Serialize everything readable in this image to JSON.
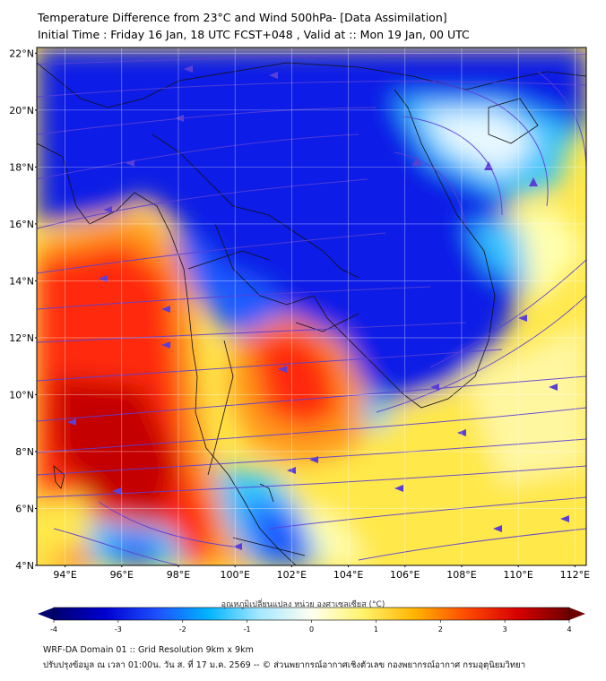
{
  "title": {
    "line1": "Temperature Difference from 23°C and Wind 500hPa- [Data Assimilation]",
    "line2": "Initial Time : Friday 16 Jan, 18 UTC FCST+048 , Valid at ::  Mon 19 Jan, 00 UTC"
  },
  "axes": {
    "lat_labels": [
      "22°N",
      "20°N",
      "18°N",
      "16°N",
      "14°N",
      "12°N",
      "10°N",
      "8°N",
      "6°N",
      "4°N"
    ],
    "lat_values": [
      22,
      20,
      18,
      16,
      14,
      12,
      10,
      8,
      6,
      4
    ],
    "lon_labels": [
      "94°E",
      "96°E",
      "98°E",
      "100°E",
      "102°E",
      "104°E",
      "106°E",
      "108°E",
      "110°E",
      "112°E"
    ],
    "lon_values": [
      94,
      96,
      98,
      100,
      102,
      104,
      106,
      108,
      110,
      112
    ],
    "lat_range": [
      4,
      22.2
    ],
    "lon_range": [
      93,
      112.4
    ]
  },
  "colorbar": {
    "title": "อุณหภูมิเปลี่ยนแปลง หน่วย องศาเซลเซียส (°C)",
    "ticks": [
      "-4",
      "-3",
      "-2",
      "-1",
      "0",
      "1",
      "2",
      "3",
      "4"
    ],
    "tick_values": [
      -4,
      -3,
      -2,
      -1,
      0,
      1,
      2,
      3,
      4
    ],
    "range": [
      -4,
      4
    ],
    "stops": [
      "#00006e",
      "#0000d0",
      "#1e50ff",
      "#00b4ff",
      "#a6e8ff",
      "#fffff0",
      "#fff36a",
      "#ffb400",
      "#ff4a00",
      "#d60000",
      "#6e0000"
    ]
  },
  "field_colors": {
    "cold_deep": "#0a1ee6",
    "cold": "#1e5cff",
    "cool": "#36c4ff",
    "near_zero": "#e8f8ff",
    "warm_light": "#ffffb0",
    "warm": "#ffe84a",
    "hot": "#ff9a1a",
    "very_hot": "#ff2a10",
    "extreme": "#c40000",
    "streamline": "#5a3fd6"
  },
  "footer": {
    "line1": "WRF-DA Domain 01 :: Grid Resolution 9km x 9km",
    "line2": "ปรับปรุงข้อมูล ณ เวลา 01:00น. วัน ส. ที่ 17 ม.ค. 2569 -- © ส่วนพยากรณ์อากาศเชิงตัวเลข กองพยากรณ์อากาศ กรมอุตุนิยมวิทยา"
  }
}
